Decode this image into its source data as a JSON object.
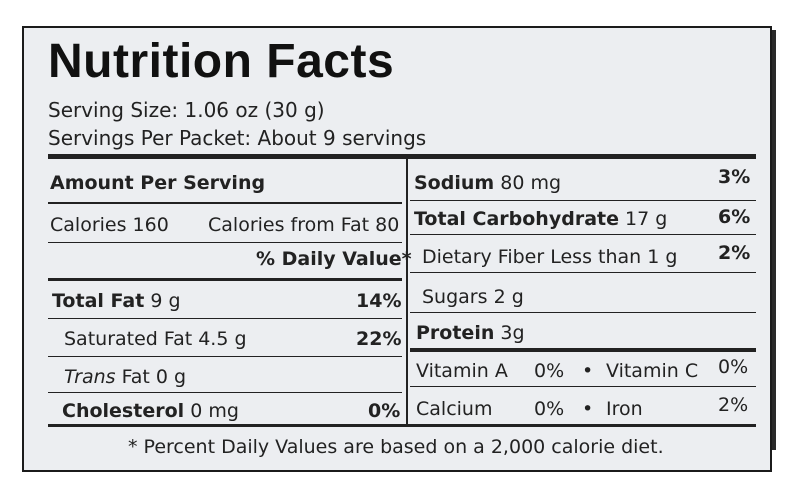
{
  "title": "Nutrition Facts",
  "serving_size": "Serving Size: 1.06 oz (30 g)",
  "servings_per_packet": "Servings Per Packet: About 9 servings",
  "amount_per_serving": "Amount Per Serving",
  "calories": {
    "label": "Calories",
    "value": "160",
    "from_fat": "Calories from Fat 80"
  },
  "daily_value_header": "% Daily Value*",
  "left_nutrients": [
    {
      "label": "Total Fat",
      "amount": "9 g",
      "dv": "14%"
    },
    {
      "label": "Saturated Fat",
      "amount": "4.5 g",
      "dv": "22%"
    },
    {
      "label_italic": "Trans",
      "label": "Fat",
      "amount": "0 g",
      "dv": ""
    },
    {
      "label": "Cholesterol",
      "amount": "0 mg",
      "dv": "0%"
    }
  ],
  "right_nutrients": [
    {
      "label": "Sodium",
      "amount": "80 mg",
      "dv": "3%"
    },
    {
      "label": "Total Carbohydrate",
      "amount": "17 g",
      "dv": "6%"
    },
    {
      "label": "Dietary Fiber",
      "amount": "Less than 1 g",
      "dv": "2%"
    },
    {
      "label": "Sugars",
      "amount": "2 g",
      "dv": ""
    },
    {
      "label": "Protein",
      "amount": "3g",
      "dv": ""
    }
  ],
  "vitamins": [
    {
      "name": "Vitamin A",
      "pct": "0%",
      "name2": "Vitamin C",
      "pct2": "0%"
    },
    {
      "name": "Calcium",
      "pct": "0%",
      "name2": "Iron",
      "pct2": "2%"
    }
  ],
  "bullet": "•",
  "footnote": "* Percent Daily Values are based on a 2,000 calorie diet."
}
